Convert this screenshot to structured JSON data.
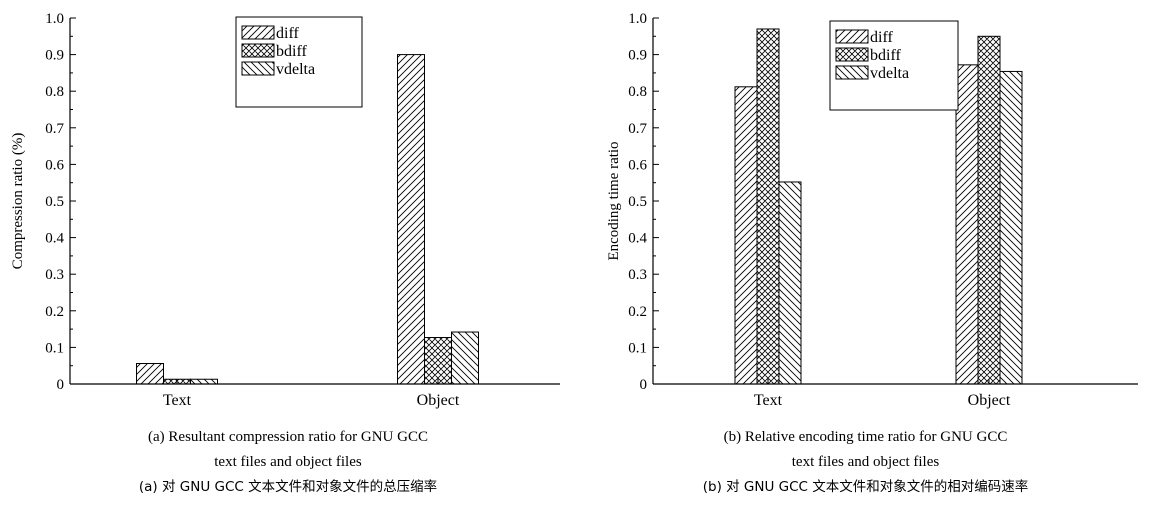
{
  "chart_data": [
    {
      "type": "bar",
      "panel": "a",
      "categories": [
        "Text",
        "Object"
      ],
      "series": [
        {
          "name": "diff",
          "values": [
            0.056,
            0.9
          ]
        },
        {
          "name": "bdiff",
          "values": [
            0.013,
            0.127
          ]
        },
        {
          "name": "vdelta",
          "values": [
            0.013,
            0.142
          ]
        }
      ],
      "xlabel": "",
      "ylabel": "Compression ratio (%)",
      "ylim": [
        0,
        1.0
      ],
      "yticks": [
        "0",
        "0.1",
        "0.2",
        "0.3",
        "0.4",
        "0.5",
        "0.6",
        "0.7",
        "0.8",
        "0.9",
        "1.0"
      ],
      "legend": "top-center",
      "grid": false,
      "caption_en_line1": "(a) Resultant compression ratio for GNU GCC",
      "caption_en_line2": "text files and object files",
      "caption_zh": "(a)  对 GNU GCC 文本文件和对象文件的总压缩率"
    },
    {
      "type": "bar",
      "panel": "b",
      "categories": [
        "Text",
        "Object"
      ],
      "series": [
        {
          "name": "diff",
          "values": [
            0.812,
            0.872
          ]
        },
        {
          "name": "bdiff",
          "values": [
            0.97,
            0.95
          ]
        },
        {
          "name": "vdelta",
          "values": [
            0.552,
            0.854
          ]
        }
      ],
      "xlabel": "",
      "ylabel": "Encoding time ratio",
      "ylim": [
        0,
        1.0
      ],
      "yticks": [
        "0",
        "0.1",
        "0.2",
        "0.3",
        "0.4",
        "0.5",
        "0.6",
        "0.7",
        "0.8",
        "0.9",
        "1.0"
      ],
      "legend": "top-center",
      "grid": false,
      "caption_en_line1": "(b) Relative encoding time ratio for GNU GCC",
      "caption_en_line2": "text files and object files",
      "caption_zh": "(b)  对 GNU GCC 文本文件和对象文件的相对编码速率"
    }
  ]
}
